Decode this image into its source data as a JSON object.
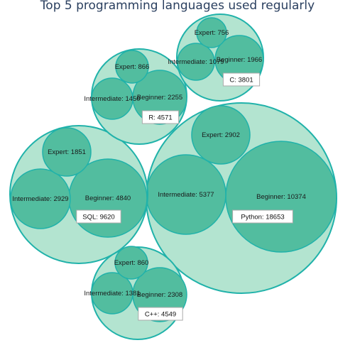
{
  "chart_data": {
    "type": "bubble-pack",
    "title": "Top 5 programming languages used regularly",
    "groups": [
      {
        "name": "Python",
        "total": 18653,
        "levels": [
          {
            "name": "Beginner",
            "value": 10374
          },
          {
            "name": "Intermediate",
            "value": 5377
          },
          {
            "name": "Expert",
            "value": 2902
          }
        ]
      },
      {
        "name": "SQL",
        "total": 9620,
        "levels": [
          {
            "name": "Beginner",
            "value": 4840
          },
          {
            "name": "Intermediate",
            "value": 2929
          },
          {
            "name": "Expert",
            "value": 1851
          }
        ]
      },
      {
        "name": "R",
        "total": 4571,
        "levels": [
          {
            "name": "Beginner",
            "value": 2255
          },
          {
            "name": "Intermediate",
            "value": 1450
          },
          {
            "name": "Expert",
            "value": 866
          }
        ]
      },
      {
        "name": "C++",
        "total": 4549,
        "levels": [
          {
            "name": "Beginner",
            "value": 2308
          },
          {
            "name": "Intermediate",
            "value": 1381
          },
          {
            "name": "Expert",
            "value": 860
          }
        ]
      },
      {
        "name": "C",
        "total": 3801,
        "levels": [
          {
            "name": "Beginner",
            "value": 1966
          },
          {
            "name": "Intermediate",
            "value": 1079
          },
          {
            "name": "Expert",
            "value": 756
          }
        ]
      }
    ]
  }
}
